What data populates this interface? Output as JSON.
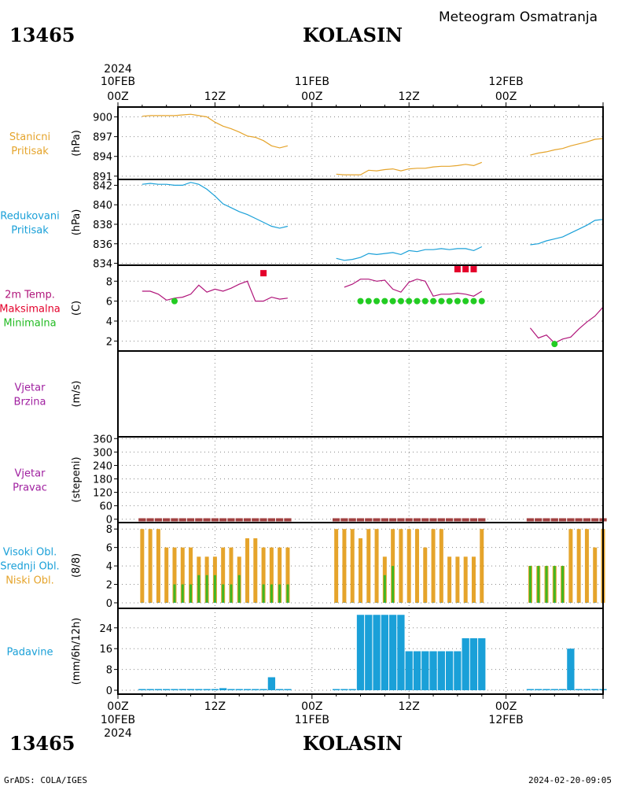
{
  "header": {
    "station_id": "13465",
    "station_name": "KOLASIN",
    "subtitle": "Meteogram Osmatranja"
  },
  "footer": {
    "credit": "GrADS: COLA/IGES",
    "timestamp": "2024-02-20-09:05"
  },
  "colors": {
    "pressure_station": "#e5a42b",
    "pressure_reduced": "#1aa0d8",
    "temp_line": "#b0157a",
    "temp_max": "#e4002b",
    "temp_min": "#22cc22",
    "wind": "#a020a0",
    "cloud_high": "#1aa0d8",
    "cloud_mid": "#22bb22",
    "cloud_low": "#e5a42b",
    "precip": "#1aa0d8",
    "missing_marker": "#a04040"
  },
  "chart_data": {
    "type": "line",
    "time_axis": {
      "hours_total": 60,
      "top_labels": [
        {
          "hour": 0,
          "line1": "10FEB",
          "line2": "00Z",
          "year": "2024"
        },
        {
          "hour": 12,
          "line1": "",
          "line2": "12Z"
        },
        {
          "hour": 24,
          "line1": "11FEB",
          "line2": "00Z"
        },
        {
          "hour": 36,
          "line1": "",
          "line2": "12Z"
        },
        {
          "hour": 48,
          "line1": "12FEB",
          "line2": "00Z"
        }
      ],
      "bottom_labels": [
        {
          "hour": 0,
          "line1": "00Z",
          "line2": "10FEB",
          "year": "2024"
        },
        {
          "hour": 12,
          "line1": "12Z",
          "line2": ""
        },
        {
          "hour": 24,
          "line1": "00Z",
          "line2": "11FEB"
        },
        {
          "hour": 36,
          "line1": "12Z",
          "line2": ""
        },
        {
          "hour": 48,
          "line1": "00Z",
          "line2": "12FEB"
        }
      ]
    },
    "panels": [
      {
        "key": "station_pressure",
        "title_lines": [
          "Stanicni",
          "Pritisak"
        ],
        "title_colors": [
          "#e5a42b",
          "#e5a42b"
        ],
        "unit": "(hPa)",
        "ylim": [
          890.5,
          901.5
        ],
        "yticks": [
          891,
          894,
          897,
          900
        ],
        "series": [
          {
            "color": "#e5a42b",
            "x": [
              3,
              4,
              5,
              6,
              7,
              8,
              9,
              10,
              11,
              12,
              13,
              14,
              15,
              16,
              17,
              18,
              19,
              20,
              21
            ],
            "y": [
              900.1,
              900.2,
              900.2,
              900.2,
              900.2,
              900.3,
              900.4,
              900.2,
              900.0,
              899.2,
              898.6,
              898.2,
              897.7,
              897.1,
              896.9,
              896.4,
              895.6,
              895.3,
              895.6
            ]
          },
          {
            "color": "#e5a42b",
            "x": [
              27,
              28,
              29,
              30,
              31,
              32,
              33,
              34,
              35,
              36,
              37,
              38,
              39,
              40,
              41,
              42,
              43,
              44,
              45
            ],
            "y": [
              891.3,
              891.2,
              891.2,
              891.2,
              891.9,
              891.8,
              892.0,
              892.1,
              891.8,
              892.1,
              892.2,
              892.2,
              892.4,
              892.5,
              892.5,
              892.6,
              892.8,
              892.6,
              893.1
            ]
          },
          {
            "color": "#e5a42b",
            "x": [
              51,
              52,
              53,
              54,
              55,
              56,
              57,
              58,
              59,
              60
            ],
            "y": [
              894.2,
              894.5,
              894.7,
              895.0,
              895.2,
              895.6,
              895.9,
              896.2,
              896.6,
              896.7
            ]
          }
        ]
      },
      {
        "key": "reduced_pressure",
        "title_lines": [
          "Redukovani",
          "Pritisak"
        ],
        "title_colors": [
          "#1aa0d8",
          "#1aa0d8"
        ],
        "unit": "(hPa)",
        "ylim": [
          833.8,
          842.6
        ],
        "yticks": [
          834,
          836,
          838,
          840,
          842
        ],
        "series": [
          {
            "color": "#1aa0d8",
            "x": [
              3,
              4,
              5,
              6,
              7,
              8,
              9,
              10,
              11,
              12,
              13,
              14,
              15,
              16,
              17,
              18,
              19,
              20,
              21
            ],
            "y": [
              842.1,
              842.2,
              842.1,
              842.1,
              842.0,
              842.0,
              842.3,
              842.1,
              841.6,
              840.9,
              840.1,
              839.7,
              839.3,
              839.0,
              838.6,
              838.2,
              837.8,
              837.6,
              837.8
            ]
          },
          {
            "color": "#1aa0d8",
            "x": [
              27,
              28,
              29,
              30,
              31,
              32,
              33,
              34,
              35,
              36,
              37,
              38,
              39,
              40,
              41,
              42,
              43,
              44,
              45
            ],
            "y": [
              834.5,
              834.3,
              834.4,
              834.6,
              835.0,
              834.9,
              835.0,
              835.1,
              834.9,
              835.3,
              835.2,
              835.4,
              835.4,
              835.5,
              835.4,
              835.5,
              835.5,
              835.3,
              835.7
            ]
          },
          {
            "color": "#1aa0d8",
            "x": [
              51,
              52,
              53,
              54,
              55,
              56,
              57,
              58,
              59,
              60
            ],
            "y": [
              835.9,
              836.0,
              836.3,
              836.5,
              836.7,
              837.1,
              837.5,
              837.9,
              838.4,
              838.5
            ]
          }
        ]
      },
      {
        "key": "temperature",
        "title_lines": [
          "2m Temp.",
          "Maksimalna",
          "Minimalna"
        ],
        "title_colors": [
          "#b0157a",
          "#e4002b",
          "#22bb22"
        ],
        "unit": "(C)",
        "ylim": [
          1,
          9.6
        ],
        "yticks": [
          2,
          4,
          6,
          8
        ],
        "series": [
          {
            "color": "#b0157a",
            "x": [
              3,
              4,
              5,
              6,
              7,
              8,
              9,
              10,
              11,
              12,
              13,
              14,
              15,
              16,
              17,
              18,
              19,
              20,
              21
            ],
            "y": [
              7.0,
              7.0,
              6.7,
              6.1,
              6.3,
              6.4,
              6.7,
              7.6,
              6.9,
              7.2,
              7.0,
              7.3,
              7.7,
              8.0,
              6.0,
              6.0,
              6.4,
              6.2,
              6.3
            ]
          },
          {
            "color": "#b0157a",
            "x": [
              28,
              29,
              30,
              31,
              32,
              33,
              34,
              35,
              36,
              37,
              38,
              39,
              40,
              41,
              42,
              43,
              44,
              45
            ],
            "y": [
              7.4,
              7.7,
              8.2,
              8.2,
              8.0,
              8.1,
              7.2,
              6.9,
              7.9,
              8.2,
              8.0,
              6.5,
              6.7,
              6.7,
              6.8,
              6.7,
              6.5,
              7.0
            ]
          },
          {
            "color": "#b0157a",
            "x": [
              51,
              52,
              53,
              54,
              55,
              56,
              57,
              58,
              59,
              60
            ],
            "y": [
              3.3,
              2.3,
              2.6,
              1.8,
              2.2,
              2.4,
              3.2,
              3.9,
              4.5,
              5.4
            ]
          }
        ],
        "max_points": {
          "color": "#e4002b",
          "x": [
            18,
            42,
            43,
            44
          ],
          "y": [
            8.8,
            9.2,
            9.2,
            9.2
          ]
        },
        "min_points": {
          "color": "#22cc22",
          "x": [
            7,
            30,
            31,
            32,
            33,
            34,
            35,
            36,
            37,
            38,
            39,
            40,
            41,
            42,
            43,
            44,
            45,
            54
          ],
          "y": [
            6.0,
            6.0,
            6.0,
            6.0,
            6.0,
            6.0,
            6.0,
            6.0,
            6.0,
            6.0,
            6.0,
            6.0,
            6.0,
            6.0,
            6.0,
            6.0,
            6.0,
            1.7
          ]
        }
      },
      {
        "key": "wind_speed",
        "title_lines": [
          "Vjetar",
          "Brzina"
        ],
        "title_colors": [
          "#a020a0",
          "#a020a0"
        ],
        "unit": "(m/s)",
        "ylim": [
          0,
          1
        ],
        "yticks": [],
        "series": []
      },
      {
        "key": "wind_direction",
        "title_lines": [
          "Vjetar",
          "Pravac"
        ],
        "title_colors": [
          "#a020a0",
          "#a020a0"
        ],
        "unit": "(stepeni)",
        "ylim": [
          -15,
          368
        ],
        "yticks": [
          0,
          60,
          120,
          180,
          240,
          300,
          360
        ],
        "series": [],
        "missing_marks": {
          "color": "#a04040",
          "x": [
            3,
            4,
            5,
            6,
            7,
            8,
            9,
            10,
            11,
            12,
            13,
            14,
            15,
            16,
            17,
            18,
            19,
            20,
            21,
            27,
            28,
            29,
            30,
            31,
            32,
            33,
            34,
            35,
            36,
            37,
            38,
            39,
            40,
            41,
            42,
            43,
            44,
            45,
            51,
            52,
            53,
            54,
            55,
            56,
            57,
            58,
            59,
            60
          ]
        }
      },
      {
        "key": "clouds",
        "title_lines": [
          "Visoki Obl.",
          "Srednji Obl.",
          "Niski Obl."
        ],
        "title_colors": [
          "#1aa0d8",
          "#1aa0d8",
          "#e5a42b"
        ],
        "unit": "(8/8)",
        "ylim": [
          -0.6,
          8.7
        ],
        "yticks": [
          0,
          2,
          4,
          6,
          8
        ],
        "bars": {
          "x": [
            3,
            4,
            5,
            6,
            7,
            8,
            9,
            10,
            11,
            12,
            13,
            14,
            15,
            16,
            17,
            18,
            19,
            20,
            21,
            27,
            28,
            29,
            30,
            31,
            32,
            33,
            34,
            35,
            36,
            37,
            38,
            39,
            40,
            41,
            42,
            43,
            44,
            45,
            51,
            52,
            53,
            54,
            55,
            56,
            57,
            58,
            59,
            60
          ],
          "low": [
            8,
            8,
            8,
            6,
            6,
            6,
            6,
            5,
            5,
            5,
            6,
            6,
            5,
            7,
            7,
            6,
            6,
            6,
            6,
            8,
            8,
            8,
            7,
            8,
            8,
            5,
            8,
            8,
            8,
            8,
            6,
            8,
            8,
            5,
            5,
            5,
            5,
            8,
            4,
            4,
            4,
            4,
            4,
            8,
            8,
            8,
            6,
            8
          ],
          "mid": [
            0,
            0,
            0,
            0,
            2,
            2,
            2,
            3,
            3,
            3,
            2,
            2,
            3,
            0,
            0,
            2,
            2,
            2,
            2,
            0,
            0,
            0,
            0,
            0,
            0,
            3,
            4,
            0,
            0,
            0,
            0,
            0,
            0,
            0,
            0,
            0,
            0,
            0,
            4,
            4,
            4,
            4,
            4,
            0,
            0,
            0,
            0,
            0
          ]
        }
      },
      {
        "key": "precipitation",
        "title_lines": [
          "Padavine"
        ],
        "title_colors": [
          "#1aa0d8"
        ],
        "unit": "(mm/6h/12h)",
        "ylim": [
          -1.5,
          31.5
        ],
        "yticks": [
          0,
          8,
          16,
          24
        ],
        "bars": {
          "x": [
            3,
            4,
            5,
            6,
            7,
            8,
            9,
            10,
            11,
            12,
            13,
            14,
            15,
            16,
            17,
            18,
            19,
            20,
            21,
            27,
            28,
            29,
            30,
            31,
            32,
            33,
            34,
            35,
            36,
            37,
            38,
            39,
            40,
            41,
            42,
            43,
            44,
            45,
            51,
            52,
            53,
            54,
            55,
            56,
            57,
            58,
            59,
            60
          ],
          "values": [
            0.2,
            0.2,
            0.2,
            0.2,
            0.4,
            0.2,
            0.2,
            0.2,
            0.2,
            0.2,
            0.8,
            0.2,
            0.2,
            0.2,
            0.2,
            0.2,
            5.0,
            0.2,
            0.2,
            0.2,
            0.2,
            0.2,
            29.0,
            29.0,
            29.0,
            29.0,
            29.0,
            29.0,
            15.0,
            15.0,
            15.0,
            15.0,
            15.0,
            15.0,
            15.0,
            20.0,
            20.0,
            20.0,
            0.2,
            0.2,
            0.2,
            0.2,
            0.2,
            16.0,
            0.2,
            0.2,
            0.2,
            0.2
          ]
        }
      }
    ]
  }
}
